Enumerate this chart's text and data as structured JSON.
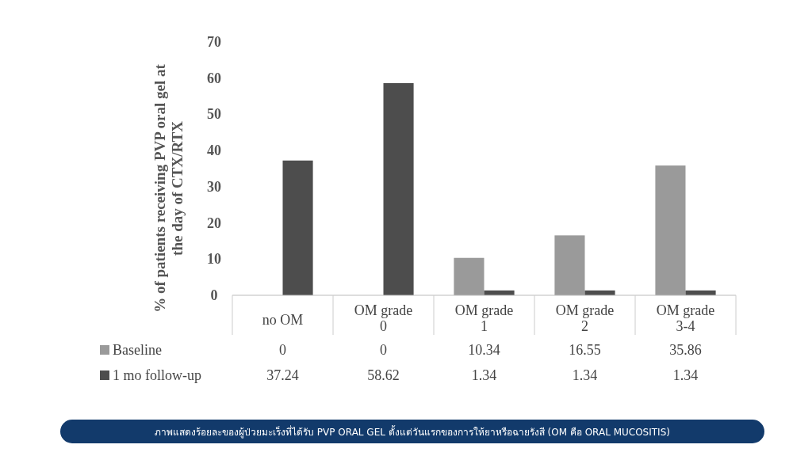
{
  "chart_data": {
    "type": "bar",
    "ylabel": "% of patients receiving PVP oral gel at the day of CTX/RTX",
    "categories": [
      "no OM",
      "OM grade 0",
      "OM grade 1",
      "OM grade 2",
      "OM grade 3-4"
    ],
    "series": [
      {
        "name": "Baseline",
        "color": "#9a9a9a",
        "values": [
          0,
          0,
          10.34,
          16.55,
          35.86
        ]
      },
      {
        "name": "1 mo follow-up",
        "color": "#4d4d4d",
        "values": [
          37.24,
          58.62,
          1.34,
          1.34,
          1.34
        ]
      }
    ],
    "ylim": [
      0,
      70
    ],
    "yticks": [
      0,
      10,
      20,
      30,
      40,
      50,
      60,
      70
    ],
    "grid": false,
    "legend": "bottom",
    "data_labels": true,
    "annotations": [
      "ภาพแสดงร้อยละของผู้ป่วยมะเร็งที่ได้รับ PVP ORAL GEL ตั้งแต่วันแรกของการให้ยาหรือฉายรังสี (OM คือ ORAL MUCOSITIS)"
    ]
  }
}
